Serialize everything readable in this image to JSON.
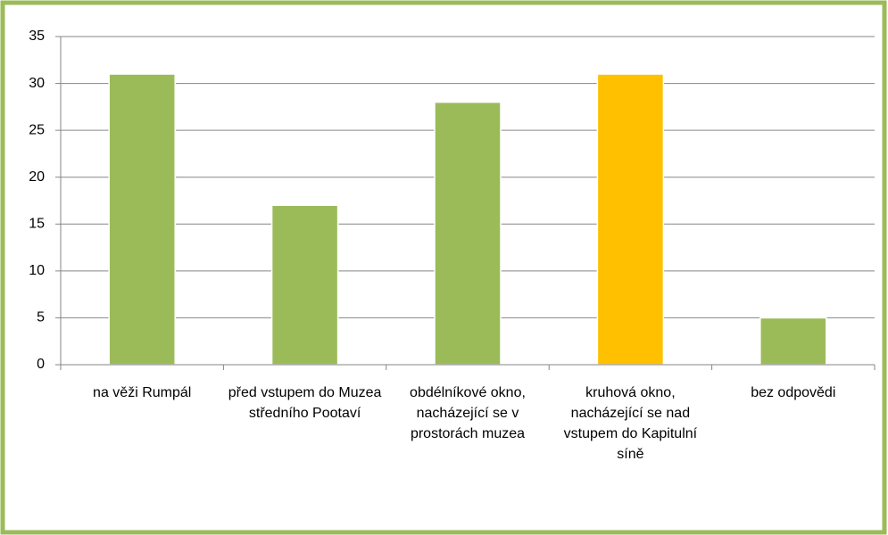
{
  "chart_data": {
    "type": "bar",
    "categories": [
      "na věži Rumpál",
      "před vstupem do Muzea středního Pootaví",
      "obdélníkové okno, nacházející se v prostorách muzea",
      "kruhová okno, nacházející se nad vstupem do Kapitulní síně",
      "bez odpovědi"
    ],
    "values": [
      31,
      17,
      28,
      31,
      5
    ],
    "colors": [
      "#9bbb59",
      "#9bbb59",
      "#9bbb59",
      "#ffc000",
      "#9bbb59"
    ],
    "ylim": [
      0,
      35
    ],
    "yticks": [
      0,
      5,
      10,
      15,
      20,
      25,
      30,
      35
    ],
    "grid": true
  }
}
